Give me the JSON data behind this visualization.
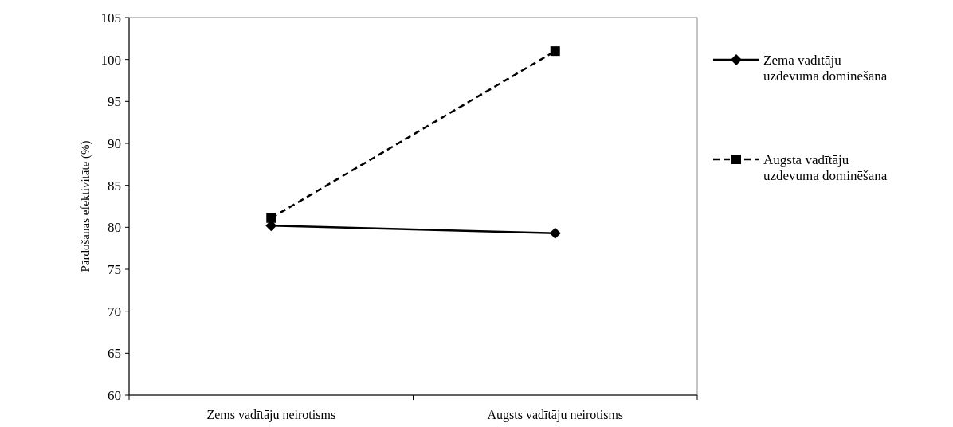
{
  "chart_data": {
    "type": "line",
    "ylabel": "Pārdošanas efektivitāte  (%)",
    "categories": [
      "Zems vadītāju neirotisms",
      "Augsts vadītāju neirotisms"
    ],
    "series": [
      {
        "name": "Zema vadītāju uzdevuma dominēšana",
        "color": "#000000",
        "values": [
          80.2,
          79.3
        ],
        "marker": "diamond",
        "line_style": "solid"
      },
      {
        "name": "Augsta vadītāju uzdevuma dominēšana",
        "color": "#000000",
        "values": [
          81.1,
          101.0
        ],
        "marker": "square",
        "line_style": "dashed"
      }
    ],
    "ylim": [
      60,
      105
    ],
    "yticks": [
      60,
      65,
      70,
      75,
      80,
      85,
      90,
      95,
      100,
      105
    ],
    "grid": false,
    "legend": "right"
  }
}
